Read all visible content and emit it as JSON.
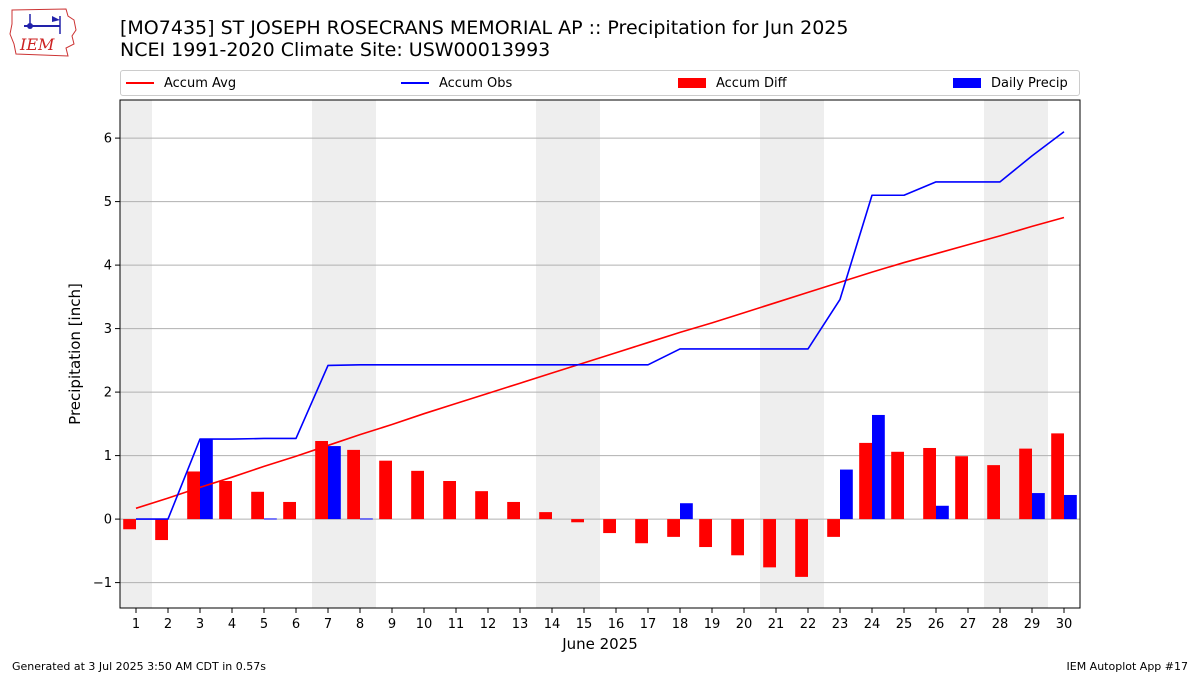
{
  "header": {
    "title_line1": "[MO7435] ST JOSEPH ROSECRANS MEMORIAL AP :: Precipitation for Jun 2025",
    "title_line2": "NCEI 1991-2020 Climate Site: USW00013993"
  },
  "logo": {
    "text": "IEM"
  },
  "legend": {
    "accum_avg": "Accum Avg",
    "accum_obs": "Accum Obs",
    "accum_diff": "Accum Diff",
    "daily_precip": "Daily Precip"
  },
  "colors": {
    "avg": "#ff0000",
    "obs": "#0000ff",
    "diff": "#ff0000",
    "daily": "#0000ff",
    "weekend": "#eeeeee",
    "grid": "#b0b0b0"
  },
  "footer": {
    "left": "Generated at 3 Jul 2025 3:50 AM CDT in 0.57s",
    "right": "IEM Autoplot App #17"
  },
  "chart_data": {
    "type": "bar",
    "ylabel": "Precipitation [inch]",
    "xlabel": "June 2025",
    "ylim": [
      -1.4,
      6.6
    ],
    "yticks": [
      -1,
      0,
      1,
      2,
      3,
      4,
      5,
      6
    ],
    "xlim": [
      0.5,
      30.5
    ],
    "grid": "horizontal",
    "legend_position": "top",
    "days": [
      1,
      2,
      3,
      4,
      5,
      6,
      7,
      8,
      9,
      10,
      11,
      12,
      13,
      14,
      15,
      16,
      17,
      18,
      19,
      20,
      21,
      22,
      23,
      24,
      25,
      26,
      27,
      28,
      29,
      30
    ],
    "shaded_days": [
      1,
      7,
      8,
      14,
      15,
      21,
      22,
      28,
      29
    ],
    "series": [
      {
        "name": "Accum Avg",
        "kind": "line",
        "values": [
          0.17,
          0.33,
          0.5,
          0.66,
          0.83,
          0.99,
          1.16,
          1.33,
          1.49,
          1.66,
          1.82,
          1.98,
          2.14,
          2.3,
          2.46,
          2.62,
          2.78,
          2.94,
          3.09,
          3.25,
          3.41,
          3.57,
          3.73,
          3.89,
          4.04,
          4.18,
          4.32,
          4.46,
          4.61,
          4.75
        ]
      },
      {
        "name": "Accum Obs",
        "kind": "line",
        "values": [
          0.0,
          0.0,
          1.26,
          1.26,
          1.27,
          1.27,
          2.42,
          2.43,
          2.43,
          2.43,
          2.43,
          2.43,
          2.43,
          2.43,
          2.43,
          2.43,
          2.43,
          2.68,
          2.68,
          2.68,
          2.68,
          2.68,
          3.46,
          5.1,
          5.1,
          5.31,
          5.31,
          5.31,
          5.72,
          6.1
        ]
      },
      {
        "name": "Accum Diff",
        "kind": "bar",
        "values": [
          -0.16,
          -0.33,
          0.75,
          0.6,
          0.43,
          0.27,
          1.23,
          1.09,
          0.92,
          0.76,
          0.6,
          0.44,
          0.27,
          0.11,
          -0.05,
          -0.22,
          -0.38,
          -0.28,
          -0.44,
          -0.57,
          -0.76,
          -0.91,
          -0.28,
          1.2,
          1.06,
          1.12,
          0.99,
          0.85,
          1.11,
          1.35
        ]
      },
      {
        "name": "Daily Precip",
        "kind": "bar",
        "values": [
          0.0,
          0.0,
          1.26,
          0.0,
          0.01,
          0.0,
          1.15,
          0.01,
          0.0,
          0.0,
          0.0,
          0.0,
          0.0,
          0.0,
          0.0,
          0.0,
          0.0,
          0.25,
          0.0,
          0.0,
          0.0,
          0.0,
          0.78,
          1.64,
          0.0,
          0.21,
          0.0,
          0.0,
          0.41,
          0.38
        ]
      }
    ]
  }
}
